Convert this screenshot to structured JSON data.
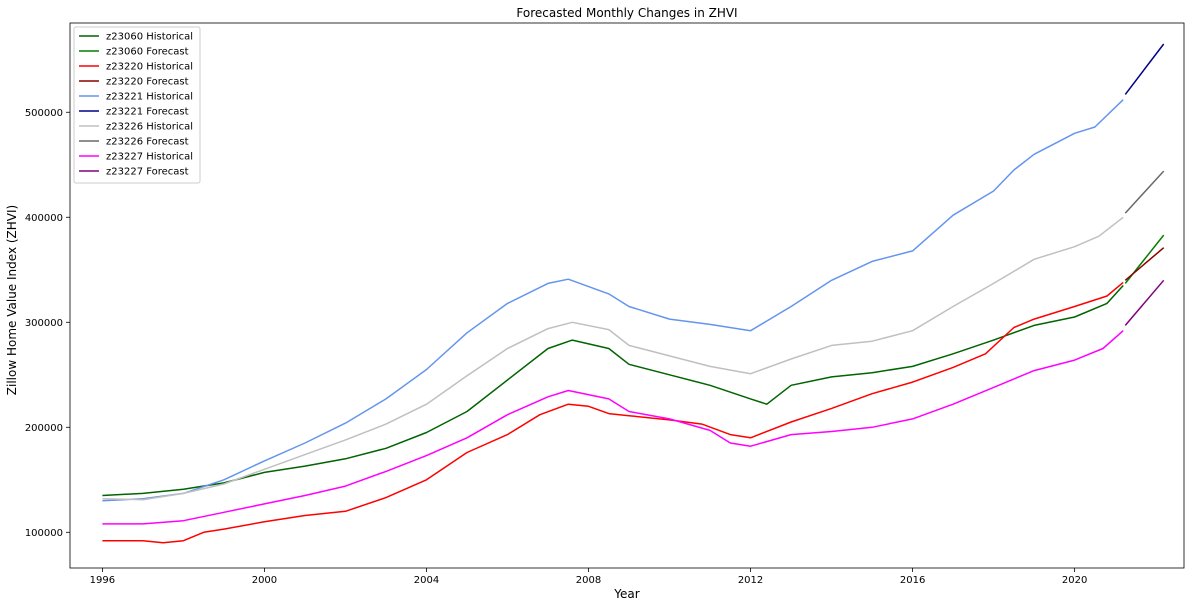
{
  "chart_data": {
    "type": "line",
    "title": "Forecasted Monthly Changes in ZHVI",
    "xlabel": "Year",
    "ylabel": "Zillow Home Value Index (ZHVI)",
    "xlim": [
      1995.2,
      2022.7
    ],
    "ylim": [
      66000,
      585000
    ],
    "x_ticks": [
      1996,
      2000,
      2004,
      2008,
      2012,
      2016,
      2020
    ],
    "y_ticks": [
      100000,
      200000,
      300000,
      400000,
      500000
    ],
    "legend_position": "upper-left",
    "grid": false,
    "series": [
      {
        "name": "z23060 Historical",
        "color": "#006400",
        "x": [
          1996,
          1997,
          1998,
          1999,
          2000,
          2001,
          2002,
          2003,
          2004,
          2005,
          2006,
          2007,
          2007.6,
          2008.5,
          2009,
          2010,
          2011,
          2012,
          2012.4,
          2013,
          2014,
          2015,
          2016,
          2017,
          2018,
          2019,
          2020,
          2020.8,
          2021.2
        ],
        "y": [
          135000,
          137000,
          141000,
          147000,
          157000,
          163000,
          170000,
          180000,
          195000,
          215000,
          245000,
          275000,
          283000,
          275000,
          260000,
          250000,
          240000,
          227000,
          222000,
          240000,
          248000,
          252000,
          258000,
          270000,
          283000,
          297000,
          305000,
          318000,
          335000
        ]
      },
      {
        "name": "z23060 Forecast",
        "color": "#008000",
        "x": [
          2021.25,
          2022.2
        ],
        "y": [
          337000,
          383000
        ]
      },
      {
        "name": "z23220 Historical",
        "color": "#ff0000",
        "x": [
          1996,
          1997,
          1997.5,
          1998,
          1998.5,
          1999,
          2000,
          2001,
          2002,
          2003,
          2004,
          2005,
          2006,
          2006.8,
          2007.5,
          2008,
          2008.5,
          2009,
          2010,
          2010.8,
          2011.5,
          2012,
          2013,
          2014,
          2015,
          2016,
          2017,
          2017.8,
          2018.5,
          2019,
          2020,
          2020.8,
          2021.2
        ],
        "y": [
          92000,
          92000,
          90000,
          92000,
          100000,
          103000,
          110000,
          116000,
          120000,
          133000,
          150000,
          176000,
          193000,
          212000,
          222000,
          220000,
          213000,
          211000,
          207000,
          203000,
          193000,
          190000,
          205000,
          218000,
          232000,
          243000,
          257000,
          270000,
          295000,
          303000,
          315000,
          325000,
          338000
        ]
      },
      {
        "name": "z23220 Forecast",
        "color": "#8b0000",
        "x": [
          2021.25,
          2022.2
        ],
        "y": [
          340000,
          371000
        ]
      },
      {
        "name": "z23221 Historical",
        "color": "#6495ed",
        "x": [
          1996,
          1997,
          1998,
          1999,
          2000,
          2001,
          2002,
          2003,
          2004,
          2005,
          2006,
          2007,
          2007.5,
          2008.5,
          2009,
          2010,
          2011,
          2012,
          2013,
          2014,
          2015,
          2016,
          2017,
          2018,
          2018.5,
          2019,
          2020,
          2020.5,
          2021.2
        ],
        "y": [
          130000,
          132000,
          137000,
          150000,
          168000,
          185000,
          204000,
          227000,
          255000,
          290000,
          318000,
          337000,
          341000,
          327000,
          315000,
          303000,
          298000,
          292000,
          315000,
          340000,
          358000,
          368000,
          402000,
          425000,
          445000,
          460000,
          480000,
          486000,
          512000
        ]
      },
      {
        "name": "z23221 Forecast",
        "color": "#00008b",
        "x": [
          2021.25,
          2022.2
        ],
        "y": [
          517000,
          565000
        ]
      },
      {
        "name": "z23226 Historical",
        "color": "#c0c0c0",
        "x": [
          1996,
          1997,
          1998,
          1999,
          2000,
          2001,
          2002,
          2003,
          2004,
          2005,
          2006,
          2007,
          2007.6,
          2008.5,
          2009,
          2010,
          2011,
          2012,
          2013,
          2014,
          2015,
          2016,
          2017,
          2018,
          2019,
          2020,
          2020.6,
          2021.2
        ],
        "y": [
          132000,
          131000,
          137000,
          146000,
          160000,
          174000,
          188000,
          203000,
          222000,
          249000,
          275000,
          294000,
          300000,
          293000,
          278000,
          268000,
          258000,
          251000,
          265000,
          278000,
          282000,
          292000,
          315000,
          337000,
          360000,
          372000,
          382000,
          400000
        ]
      },
      {
        "name": "z23226 Forecast",
        "color": "#696969",
        "x": [
          2021.25,
          2022.2
        ],
        "y": [
          404000,
          444000
        ]
      },
      {
        "name": "z23227 Historical",
        "color": "#ff00ff",
        "x": [
          1996,
          1997,
          1998,
          1999,
          2000,
          2001,
          2002,
          2003,
          2004,
          2005,
          2006,
          2007,
          2007.5,
          2008.5,
          2009,
          2010,
          2011,
          2011.5,
          2012,
          2013,
          2014,
          2015,
          2016,
          2017,
          2018,
          2019,
          2020,
          2020.7,
          2021.2
        ],
        "y": [
          108000,
          108000,
          111000,
          119000,
          127000,
          135000,
          144000,
          158000,
          173000,
          190000,
          212000,
          229000,
          235000,
          227000,
          215000,
          208000,
          197000,
          185000,
          182000,
          193000,
          196000,
          200000,
          208000,
          222000,
          238000,
          254000,
          264000,
          275000,
          292000
        ]
      },
      {
        "name": "z23227 Forecast",
        "color": "#800080",
        "x": [
          2021.25,
          2022.2
        ],
        "y": [
          297000,
          340000
        ]
      }
    ]
  }
}
